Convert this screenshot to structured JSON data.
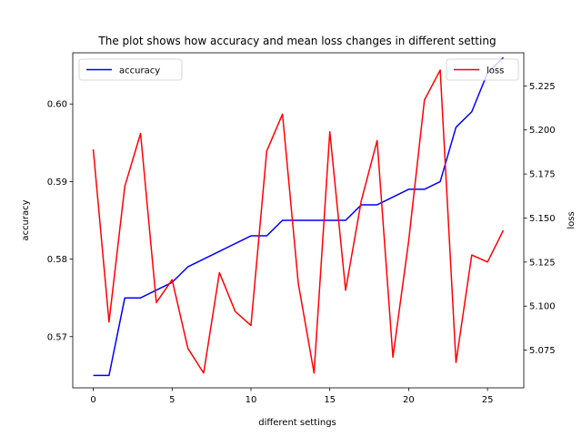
{
  "chart_data": {
    "type": "line",
    "title": "The plot shows how accuracy and mean loss changes in different setting",
    "xlabel": "different settings",
    "ylabel_left": "accuracy",
    "ylabel_right": "loss",
    "xlim": [
      -1.3,
      27.3
    ],
    "ylim_left": [
      0.5634,
      0.6066
    ],
    "ylim_right": [
      5.0536,
      5.2438
    ],
    "x_ticks": [
      0,
      5,
      10,
      15,
      20,
      25
    ],
    "y_left_ticks": [
      0.57,
      0.58,
      0.59,
      0.6
    ],
    "y_left_tick_labels": [
      "0.57",
      "0.58",
      "0.59",
      "0.60"
    ],
    "y_right_ticks": [
      5.075,
      5.1,
      5.125,
      5.15,
      5.175,
      5.2,
      5.225
    ],
    "y_right_tick_labels": [
      "5.075",
      "5.100",
      "5.125",
      "5.150",
      "5.175",
      "5.200",
      "5.225"
    ],
    "x": [
      0,
      1,
      2,
      3,
      4,
      5,
      6,
      7,
      8,
      9,
      10,
      11,
      12,
      13,
      14,
      15,
      16,
      17,
      18,
      19,
      20,
      21,
      22,
      23,
      24,
      25,
      26
    ],
    "series": [
      {
        "name": "accuracy",
        "axis": "left",
        "color": "#0000ff",
        "legend_position": "upper-left",
        "values": [
          0.565,
          0.565,
          0.575,
          0.575,
          0.576,
          0.577,
          0.579,
          0.58,
          0.581,
          0.582,
          0.583,
          0.583,
          0.585,
          0.585,
          0.585,
          0.585,
          0.585,
          0.587,
          0.587,
          0.588,
          0.589,
          0.589,
          0.59,
          0.597,
          0.599,
          0.604,
          0.606
        ]
      },
      {
        "name": "loss",
        "axis": "right",
        "color": "#ff0000",
        "legend_position": "upper-right",
        "values": [
          5.189,
          5.091,
          5.168,
          5.198,
          5.102,
          5.115,
          5.076,
          5.062,
          5.119,
          5.097,
          5.089,
          5.188,
          5.209,
          5.113,
          5.062,
          5.199,
          5.109,
          5.16,
          5.194,
          5.071,
          5.137,
          5.217,
          5.234,
          5.068,
          5.129,
          5.125,
          5.143
        ]
      }
    ],
    "grid": false
  }
}
